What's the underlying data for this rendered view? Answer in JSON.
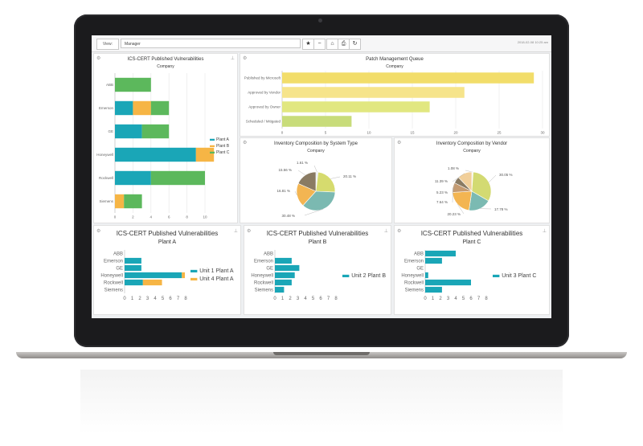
{
  "toolbar": {
    "view_label": "View:",
    "view_value": "Manager",
    "datetime": "2018-02-08 10:25 am"
  },
  "panels": {
    "ics_cert": {
      "title": "ICS-CERT Published Vulnerabilities",
      "subtitle": "Company"
    },
    "patch": {
      "title": "Patch Management Queue",
      "subtitle": "Company"
    },
    "inv_system": {
      "title": "Inventory Composition by System Type",
      "subtitle": "Company"
    },
    "inv_vendor": {
      "title": "Inventory Composition by Vendor",
      "subtitle": "Company"
    },
    "plant_a": {
      "title": "ICS-CERT Published Vulnerabilities",
      "subtitle": "Plant A"
    },
    "plant_b": {
      "title": "ICS-CERT Published Vulnerabilities",
      "subtitle": "Plant B"
    },
    "plant_c": {
      "title": "ICS-CERT Published Vulnerabilities",
      "subtitle": "Plant C"
    }
  },
  "chart_data": [
    {
      "id": "ics_cert",
      "type": "bar",
      "orientation": "horizontal",
      "stacked": true,
      "categories": [
        "ABB",
        "Emerson",
        "GE",
        "Honeywell",
        "Rockwell",
        "Siemens"
      ],
      "series": [
        {
          "name": "Plant A",
          "color": "#1aa6b7",
          "values": [
            0,
            2,
            3,
            9,
            4,
            0
          ]
        },
        {
          "name": "Plant B",
          "color": "#f6b545",
          "values": [
            0,
            2,
            0,
            2,
            0,
            1
          ]
        },
        {
          "name": "Plant C",
          "color": "#5cb85c",
          "values": [
            4,
            2,
            3,
            0,
            6,
            2
          ]
        }
      ],
      "xlim": [
        0,
        10
      ],
      "xticks": [
        0,
        2,
        4,
        6,
        8,
        10
      ],
      "legend": "right",
      "grid": true
    },
    {
      "id": "patch",
      "type": "bar",
      "orientation": "horizontal",
      "categories": [
        "Published by Microsoft",
        "Approved by Vendor",
        "Approved by Owner",
        "Scheduled / Mitigated"
      ],
      "values": [
        29,
        21,
        17,
        8
      ],
      "colors": [
        "#f2dd6a",
        "#f6e48b",
        "#e1e780",
        "#c8dc7a"
      ],
      "xlim": [
        0,
        30
      ],
      "xticks": [
        0,
        5,
        10,
        15,
        20,
        25,
        30
      ],
      "grid": true
    },
    {
      "id": "inv_system",
      "type": "pie",
      "labels": [
        "1.61 %",
        "20.11 %",
        "30.48 %",
        "16.81 %",
        "15.56 %"
      ],
      "values": [
        1.61,
        20.11,
        30.48,
        16.81,
        15.56
      ],
      "colors": [
        "#e9ecf0",
        "#d6db6e",
        "#7bb9b1",
        "#f3b552",
        "#8a7b63"
      ]
    },
    {
      "id": "inv_vendor",
      "type": "pie",
      "labels": [
        "1.08 %",
        "30.05 %",
        "17.78 %",
        "20.23 %",
        "7.64 %",
        "5.23 %",
        "11.39 %"
      ],
      "values": [
        1.08,
        30.05,
        17.78,
        20.23,
        7.64,
        5.23,
        11.39
      ],
      "colors": [
        "#f4f1e8",
        "#d3da72",
        "#7bbab2",
        "#f3b552",
        "#c59b71",
        "#8a7b63",
        "#f1cf9a"
      ]
    },
    {
      "id": "plant_a",
      "type": "bar",
      "orientation": "horizontal",
      "stacked": true,
      "categories": [
        "ABB",
        "Emerson",
        "GE",
        "Honeywell",
        "Rockwell",
        "Siemens"
      ],
      "series": [
        {
          "name": "Unit 1 Plant A",
          "color": "#1aa6b7",
          "values": [
            0,
            2.2,
            2.2,
            7.5,
            2.4,
            0
          ]
        },
        {
          "name": "Unit 4 Plant A",
          "color": "#f6b545",
          "values": [
            0,
            0,
            0,
            0.4,
            2.5,
            0
          ]
        }
      ],
      "xlim": [
        0,
        8
      ],
      "xticks": [
        0,
        1,
        2,
        3,
        4,
        5,
        6,
        7,
        8
      ],
      "legend": "right"
    },
    {
      "id": "plant_b",
      "type": "bar",
      "orientation": "horizontal",
      "categories": [
        "ABB",
        "Emerson",
        "GE",
        "Honeywell",
        "Rockwell",
        "Siemens"
      ],
      "series": [
        {
          "name": "Unit 2 Plant B",
          "color": "#1aa6b7",
          "values": [
            0,
            2.2,
            3.2,
            2.6,
            2.2,
            1.2
          ]
        }
      ],
      "xlim": [
        0,
        8
      ],
      "xticks": [
        0,
        1,
        2,
        3,
        4,
        5,
        6,
        7,
        8
      ],
      "legend": "right"
    },
    {
      "id": "plant_c",
      "type": "bar",
      "orientation": "horizontal",
      "categories": [
        "ABB",
        "Emerson",
        "GE",
        "Honeywell",
        "Rockwell",
        "Siemens"
      ],
      "series": [
        {
          "name": "Unit 3 Plant C",
          "color": "#1aa6b7",
          "values": [
            4,
            2.2,
            0,
            0.4,
            6,
            2.2
          ]
        }
      ],
      "xlim": [
        0,
        8
      ],
      "xticks": [
        0,
        1,
        2,
        3,
        4,
        5,
        6,
        7,
        8
      ],
      "legend": "right"
    }
  ]
}
